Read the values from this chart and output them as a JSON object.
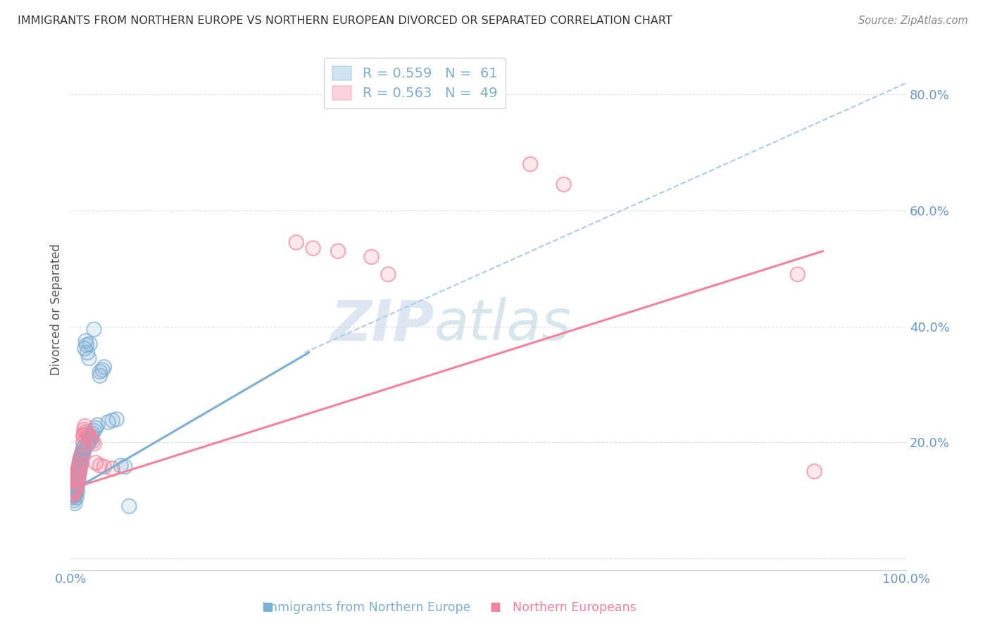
{
  "title": "IMMIGRANTS FROM NORTHERN EUROPE VS NORTHERN EUROPEAN DIVORCED OR SEPARATED CORRELATION CHART",
  "source": "Source: ZipAtlas.com",
  "ylabel": "Divorced or Separated",
  "xmin": 0.0,
  "xmax": 1.0,
  "ymin": -0.02,
  "ymax": 0.88,
  "yticks": [
    0.0,
    0.2,
    0.4,
    0.6,
    0.8
  ],
  "ytick_labels": [
    "",
    "20.0%",
    "40.0%",
    "60.0%",
    "80.0%"
  ],
  "legend_blue_R": "R = 0.559",
  "legend_blue_N": "N =  61",
  "legend_pink_R": "R = 0.563",
  "legend_pink_N": "N =  49",
  "watermark_zip": "ZIP",
  "watermark_atlas": "atlas",
  "blue_color": "#7BAFD4",
  "pink_color": "#F4829A",
  "blue_scatter": [
    [
      0.001,
      0.115
    ],
    [
      0.002,
      0.12
    ],
    [
      0.002,
      0.105
    ],
    [
      0.003,
      0.118
    ],
    [
      0.003,
      0.108
    ],
    [
      0.004,
      0.122
    ],
    [
      0.004,
      0.112
    ],
    [
      0.004,
      0.1
    ],
    [
      0.005,
      0.13
    ],
    [
      0.005,
      0.108
    ],
    [
      0.005,
      0.095
    ],
    [
      0.006,
      0.135
    ],
    [
      0.006,
      0.12
    ],
    [
      0.006,
      0.11
    ],
    [
      0.007,
      0.14
    ],
    [
      0.007,
      0.118
    ],
    [
      0.007,
      0.105
    ],
    [
      0.008,
      0.148
    ],
    [
      0.008,
      0.125
    ],
    [
      0.008,
      0.115
    ],
    [
      0.009,
      0.155
    ],
    [
      0.009,
      0.13
    ],
    [
      0.01,
      0.16
    ],
    [
      0.01,
      0.145
    ],
    [
      0.01,
      0.135
    ],
    [
      0.011,
      0.17
    ],
    [
      0.011,
      0.15
    ],
    [
      0.012,
      0.175
    ],
    [
      0.012,
      0.162
    ],
    [
      0.013,
      0.18
    ],
    [
      0.013,
      0.168
    ],
    [
      0.014,
      0.185
    ],
    [
      0.015,
      0.19
    ],
    [
      0.015,
      0.178
    ],
    [
      0.016,
      0.192
    ],
    [
      0.016,
      0.185
    ],
    [
      0.017,
      0.362
    ],
    [
      0.018,
      0.375
    ],
    [
      0.019,
      0.368
    ],
    [
      0.02,
      0.355
    ],
    [
      0.02,
      0.195
    ],
    [
      0.021,
      0.2
    ],
    [
      0.022,
      0.345
    ],
    [
      0.023,
      0.37
    ],
    [
      0.024,
      0.205
    ],
    [
      0.025,
      0.21
    ],
    [
      0.026,
      0.215
    ],
    [
      0.028,
      0.395
    ],
    [
      0.028,
      0.22
    ],
    [
      0.03,
      0.225
    ],
    [
      0.032,
      0.23
    ],
    [
      0.035,
      0.322
    ],
    [
      0.035,
      0.315
    ],
    [
      0.038,
      0.325
    ],
    [
      0.04,
      0.33
    ],
    [
      0.045,
      0.235
    ],
    [
      0.05,
      0.238
    ],
    [
      0.055,
      0.24
    ],
    [
      0.06,
      0.16
    ],
    [
      0.065,
      0.158
    ],
    [
      0.07,
      0.09
    ]
  ],
  "pink_scatter": [
    [
      0.001,
      0.118
    ],
    [
      0.002,
      0.115
    ],
    [
      0.002,
      0.108
    ],
    [
      0.003,
      0.122
    ],
    [
      0.003,
      0.112
    ],
    [
      0.004,
      0.128
    ],
    [
      0.004,
      0.118
    ],
    [
      0.005,
      0.132
    ],
    [
      0.005,
      0.115
    ],
    [
      0.006,
      0.138
    ],
    [
      0.006,
      0.122
    ],
    [
      0.007,
      0.142
    ],
    [
      0.007,
      0.13
    ],
    [
      0.008,
      0.148
    ],
    [
      0.008,
      0.135
    ],
    [
      0.009,
      0.155
    ],
    [
      0.009,
      0.142
    ],
    [
      0.01,
      0.162
    ],
    [
      0.01,
      0.15
    ],
    [
      0.011,
      0.168
    ],
    [
      0.012,
      0.172
    ],
    [
      0.012,
      0.16
    ],
    [
      0.013,
      0.178
    ],
    [
      0.014,
      0.182
    ],
    [
      0.015,
      0.212
    ],
    [
      0.015,
      0.2
    ],
    [
      0.016,
      0.222
    ],
    [
      0.016,
      0.212
    ],
    [
      0.017,
      0.228
    ],
    [
      0.018,
      0.218
    ],
    [
      0.019,
      0.208
    ],
    [
      0.02,
      0.215
    ],
    [
      0.022,
      0.21
    ],
    [
      0.024,
      0.205
    ],
    [
      0.026,
      0.202
    ],
    [
      0.028,
      0.198
    ],
    [
      0.03,
      0.165
    ],
    [
      0.035,
      0.16
    ],
    [
      0.04,
      0.158
    ],
    [
      0.05,
      0.155
    ],
    [
      0.27,
      0.545
    ],
    [
      0.29,
      0.535
    ],
    [
      0.32,
      0.53
    ],
    [
      0.36,
      0.52
    ],
    [
      0.38,
      0.49
    ],
    [
      0.55,
      0.68
    ],
    [
      0.59,
      0.645
    ],
    [
      0.87,
      0.49
    ],
    [
      0.89,
      0.15
    ]
  ],
  "blue_line_x": [
    0.0,
    0.285
  ],
  "blue_line_y": [
    0.115,
    0.355
  ],
  "pink_line_x": [
    0.0,
    0.9
  ],
  "pink_line_y": [
    0.12,
    0.53
  ],
  "dashed_line_x": [
    0.28,
    1.0
  ],
  "dashed_line_y": [
    0.355,
    0.82
  ],
  "background_color": "#FFFFFF",
  "grid_color": "#DDDDDD",
  "title_color": "#333333",
  "tick_label_color": "#6699CC"
}
